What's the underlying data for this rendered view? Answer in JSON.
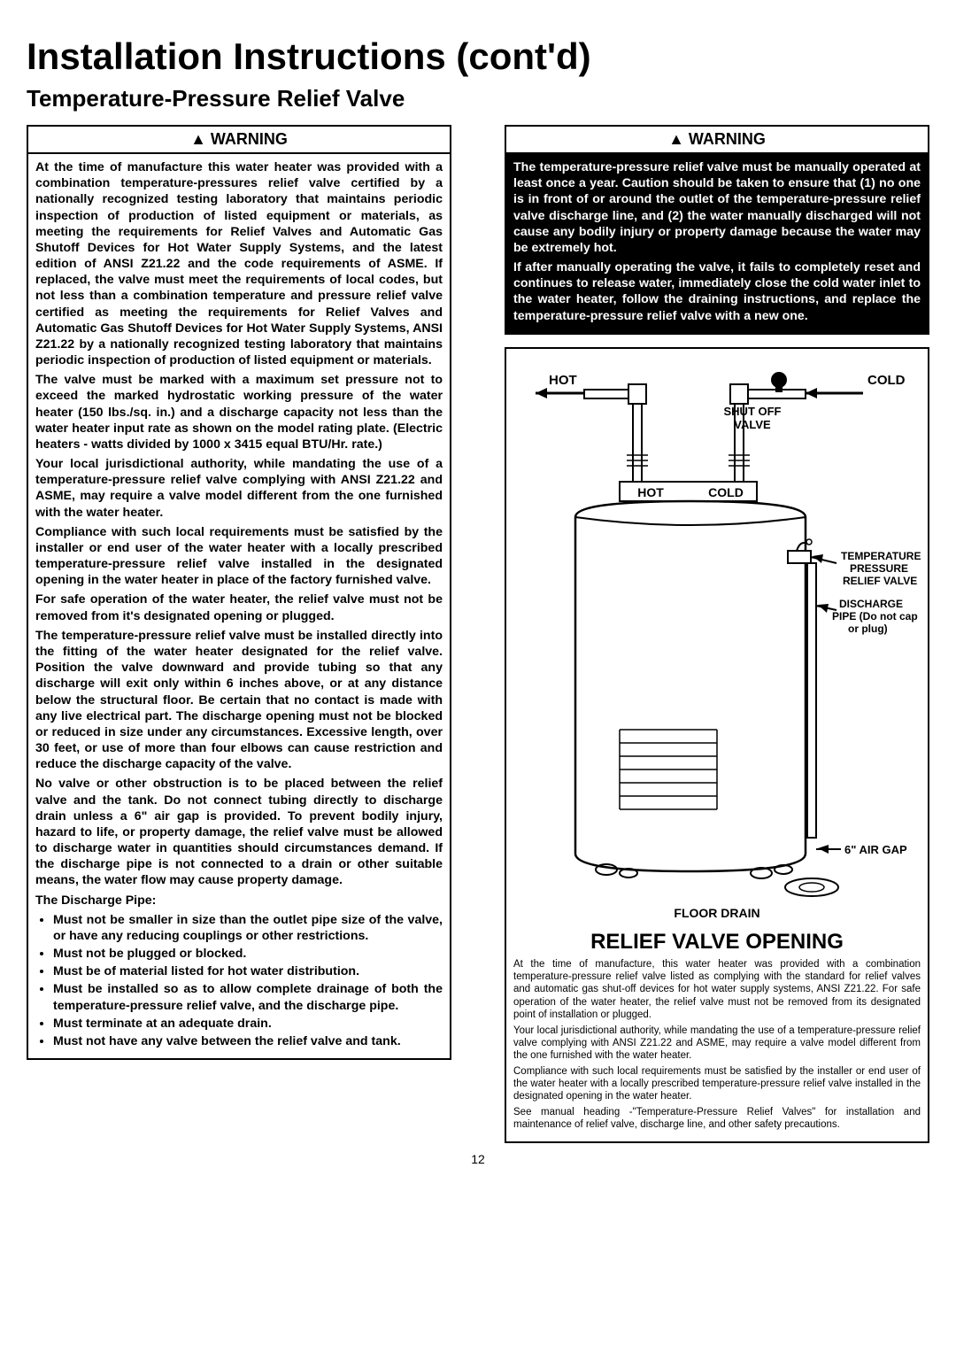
{
  "title": "Installation Instructions (cont'd)",
  "subtitle": "Temperature-Pressure Relief Valve",
  "pageNumber": "12",
  "warningLabel": "▲ WARNING",
  "leftWarning": {
    "paras": [
      "At the time of manufacture this water heater was provided with a combination temperature-pressures relief valve certified by a nationally recognized testing laboratory that maintains periodic inspection of production of listed equipment or materials, as meeting the requirements for Relief Valves and Automatic Gas Shutoff Devices for Hot Water Supply Systems, and the latest edition of ANSI Z21.22 and the code requirements of ASME. If replaced, the valve must meet the requirements of local codes, but not less than a combination temperature and pressure relief valve certified as meeting the requirements for Relief Valves and Automatic Gas Shutoff Devices for Hot Water Supply Systems, ANSI Z21.22 by a nationally recognized testing laboratory that maintains periodic inspection of production of listed equipment or materials.",
      "The valve must be marked with a maximum set pressure not to exceed the marked hydrostatic working pressure of the water heater (150 lbs./sq. in.) and a discharge capacity not less than the water heater input rate as shown on the model rating plate. (Electric heaters - watts divided by 1000 x 3415 equal BTU/Hr. rate.)",
      "Your local jurisdictional authority, while mandating the use of a temperature-pressure relief valve complying with ANSI Z21.22 and ASME, may require a valve model different from the one furnished with the water heater.",
      "Compliance with such local requirements must be satisfied by the installer or end user of the water heater with a locally prescribed temperature-pressure relief valve installed in the designated opening in the water heater in place of the factory furnished valve.",
      "For safe operation of the water heater, the relief valve must not be removed from it's designated opening or plugged.",
      "The temperature-pressure relief valve must be installed directly into the fitting of the water heater designated for the relief valve. Position the valve downward and provide tubing so that any discharge will exit only within 6 inches above, or at any distance below the structural floor. Be certain that no contact is made with any live electrical part. The discharge opening must not be blocked or reduced in size under any circumstances. Excessive length, over 30 feet, or use of more than four elbows can cause restriction and reduce the discharge capacity of the valve.",
      "No valve or other obstruction is to be placed between the relief valve and the tank. Do not connect tubing directly to discharge drain unless a 6\" air gap is provided. To prevent bodily injury, hazard to life, or property damage, the relief valve must be allowed to discharge water in quantities should circumstances demand. If the discharge pipe is not connected to a drain or other suitable means, the water flow may cause property damage.",
      "The Discharge Pipe:"
    ],
    "bullets": [
      "Must not be smaller in size than the outlet pipe size of the valve, or have any reducing couplings or other restrictions.",
      "Must not be plugged or blocked.",
      "Must be of material listed for hot water distribution.",
      "Must be installed so as to allow complete drainage of both the temperature-pressure relief valve, and the discharge pipe.",
      "Must terminate at an adequate drain.",
      "Must not have any valve between the relief valve and tank."
    ]
  },
  "rightWarning": {
    "paras": [
      "The temperature-pressure relief valve must be manually operated at least once a year. Caution should be taken to ensure that (1) no one is in front of or around the outlet of the temperature-pressure relief valve discharge line, and (2) the water manually discharged will not cause any bodily injury or property damage because the water may be extremely hot.",
      "If after manually operating the valve, it fails to completely reset and continues to release water, immediately close the cold water inlet to the water heater, follow the draining instructions, and replace the temperature-pressure relief valve with a new one."
    ]
  },
  "diagram": {
    "hot": "HOT",
    "cold": "COLD",
    "shutoff": "SHUT OFF\nVALVE",
    "hotInlet": "HOT",
    "coldInlet": "COLD",
    "tprv": "TEMPERATURE-\nPRESSURE\nRELIEF VALVE",
    "discharge": "DISCHARGE\nPIPE (Do not cap\nor plug)",
    "airgap": "6\" AIR GAP",
    "floordrain": "FLOOR DRAIN"
  },
  "relief": {
    "title": "RELIEF VALVE OPENING",
    "paras": [
      "At the time of manufacture, this water heater was provided with a combination temperature-pressure relief valve listed as complying with the standard for relief valves and automatic gas shut-off devices for hot water supply systems, ANSI Z21.22. For safe operation of the water heater, the relief valve must not be removed from its designated point of installation or plugged.",
      "Your local jurisdictional authority, while mandating the use of a temperature-pressure relief valve complying with ANSI Z21.22 and ASME, may require a valve model different from the one furnished with the water heater.",
      "Compliance with such local requirements must be satisfied by the installer or end user of the water heater with a locally prescribed temperature-pressure relief valve installed in the designated opening in the water heater.",
      "See manual heading -\"Temperature-Pressure Relief Valves\" for installation and maintenance of relief valve, discharge line, and other safety precautions."
    ]
  }
}
